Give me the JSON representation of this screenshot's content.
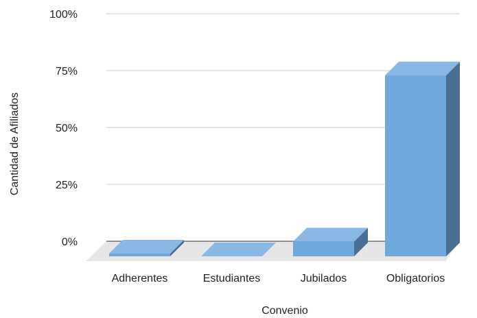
{
  "chart_data": {
    "type": "bar",
    "title": "",
    "xlabel": "Convenio",
    "ylabel": "Cantidad de Afiliados",
    "categories": [
      "Adherentes",
      "Estudiantes",
      "Jubilados",
      "Obligatorios"
    ],
    "values": [
      1.2,
      0,
      6.5,
      79.5
    ],
    "ylim": [
      0,
      100
    ],
    "y_ticks": [
      "0%",
      "25%",
      "50%",
      "75%",
      "100%"
    ],
    "y_tick_values": [
      0,
      25,
      50,
      75,
      100
    ],
    "grid": true,
    "legend": "none",
    "style": "3d",
    "colors": {
      "front": "#6fa8dc",
      "top": "#8ab8e4",
      "side": "#4a6f94",
      "floor": "#e6e6e6",
      "grid": "#cccccc",
      "baseline": "#333333"
    }
  }
}
